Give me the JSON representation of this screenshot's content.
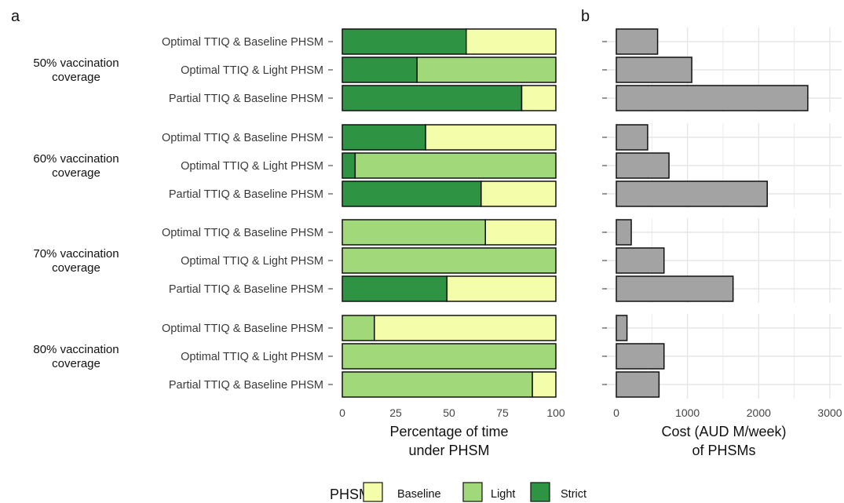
{
  "panels": {
    "a_label": "a",
    "b_label": "b"
  },
  "groups": [
    {
      "label_line1": "50% vaccination",
      "label_line2": "coverage"
    },
    {
      "label_line1": "60% vaccination",
      "label_line2": "coverage"
    },
    {
      "label_line1": "70% vaccination",
      "label_line2": "coverage"
    },
    {
      "label_line1": "80% vaccination",
      "label_line2": "coverage"
    }
  ],
  "scenarios": [
    "Optimal TTIQ & Baseline PHSM",
    "Optimal TTIQ & Light PHSM",
    "Partial TTIQ & Baseline PHSM"
  ],
  "legend": {
    "title": "PHSM",
    "items": [
      {
        "label": "Baseline",
        "color": "#f4fdaa"
      },
      {
        "label": "Light",
        "color": "#a0d87a"
      },
      {
        "label": "Strict",
        "color": "#2e9444"
      }
    ]
  },
  "chart_data": [
    {
      "panel": "a",
      "type": "bar",
      "orientation": "horizontal",
      "stacked": true,
      "xlabel_line1": "Percentage of time",
      "xlabel_line2": "under PHSM",
      "xlim": [
        0,
        100
      ],
      "xticks": [
        "0",
        "25",
        "50",
        "75",
        "100"
      ],
      "stack_order": [
        "Strict",
        "Light",
        "Baseline"
      ],
      "colors": {
        "Strict": "#2e9444",
        "Light": "#a0d87a",
        "Baseline": "#f4fdaa"
      },
      "rows": [
        {
          "group": 0,
          "scenario": 0,
          "Strict": 58,
          "Light": 0,
          "Baseline": 42
        },
        {
          "group": 0,
          "scenario": 1,
          "Strict": 35,
          "Light": 65,
          "Baseline": 0
        },
        {
          "group": 0,
          "scenario": 2,
          "Strict": 84,
          "Light": 0,
          "Baseline": 16
        },
        {
          "group": 1,
          "scenario": 0,
          "Strict": 39,
          "Light": 0,
          "Baseline": 61
        },
        {
          "group": 1,
          "scenario": 1,
          "Strict": 6,
          "Light": 94,
          "Baseline": 0
        },
        {
          "group": 1,
          "scenario": 2,
          "Strict": 65,
          "Light": 0,
          "Baseline": 35
        },
        {
          "group": 2,
          "scenario": 0,
          "Strict": 0,
          "Light": 67,
          "Baseline": 33
        },
        {
          "group": 2,
          "scenario": 1,
          "Strict": 0,
          "Light": 100,
          "Baseline": 0
        },
        {
          "group": 2,
          "scenario": 2,
          "Strict": 49,
          "Light": 0,
          "Baseline": 51
        },
        {
          "group": 3,
          "scenario": 0,
          "Strict": 0,
          "Light": 15,
          "Baseline": 85
        },
        {
          "group": 3,
          "scenario": 1,
          "Strict": 0,
          "Light": 100,
          "Baseline": 0
        },
        {
          "group": 3,
          "scenario": 2,
          "Strict": 0,
          "Light": 89,
          "Baseline": 11
        }
      ]
    },
    {
      "panel": "b",
      "type": "bar",
      "orientation": "horizontal",
      "xlabel_line1": "Cost (AUD M/week)",
      "xlabel_line2": "of PHSMs",
      "xlim": [
        0,
        3000
      ],
      "xticks": [
        "0",
        "1000",
        "2000",
        "3000"
      ],
      "bar_color": "#a3a3a3",
      "grid": true,
      "rows": [
        {
          "group": 0,
          "scenario": 0,
          "value": 580
        },
        {
          "group": 0,
          "scenario": 1,
          "value": 1060
        },
        {
          "group": 0,
          "scenario": 2,
          "value": 2690
        },
        {
          "group": 1,
          "scenario": 0,
          "value": 440
        },
        {
          "group": 1,
          "scenario": 1,
          "value": 740
        },
        {
          "group": 1,
          "scenario": 2,
          "value": 2120
        },
        {
          "group": 2,
          "scenario": 0,
          "value": 210
        },
        {
          "group": 2,
          "scenario": 1,
          "value": 670
        },
        {
          "group": 2,
          "scenario": 2,
          "value": 1640
        },
        {
          "group": 3,
          "scenario": 0,
          "value": 150
        },
        {
          "group": 3,
          "scenario": 1,
          "value": 670
        },
        {
          "group": 3,
          "scenario": 2,
          "value": 600
        }
      ]
    }
  ]
}
